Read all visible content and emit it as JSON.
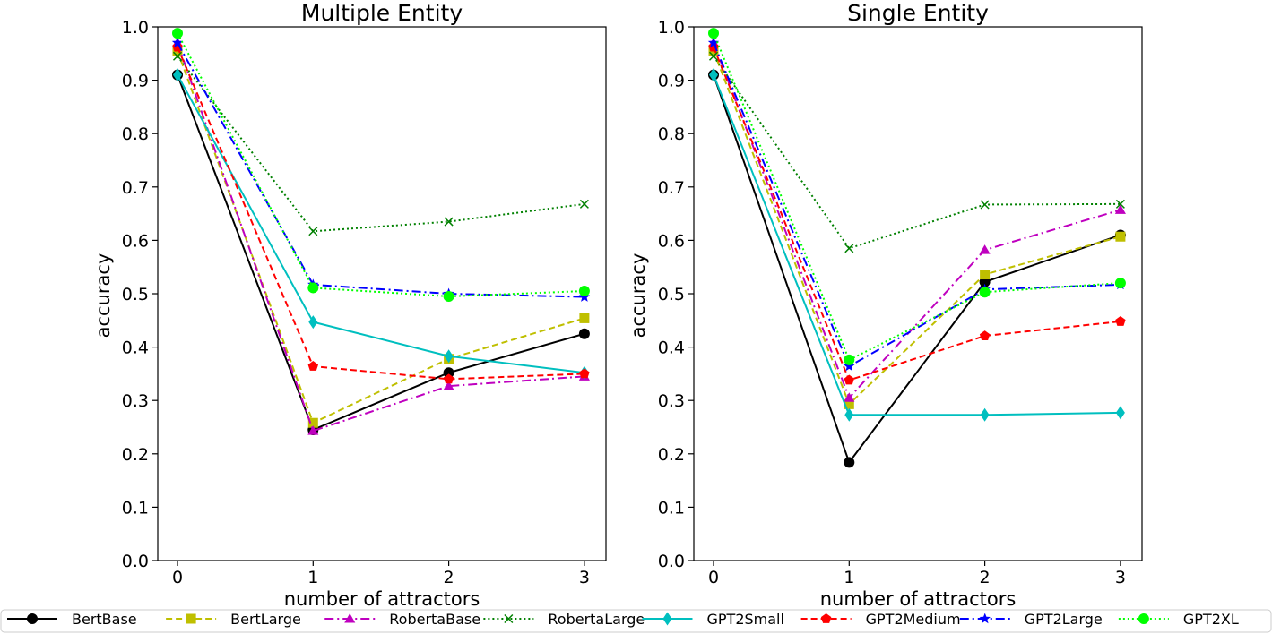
{
  "chart_data": [
    {
      "type": "line",
      "title": "Multiple Entity",
      "xlabel": "number of attractors",
      "ylabel": "accuracy",
      "x": [
        0,
        1,
        2,
        3
      ],
      "xticks": [
        "0",
        "1",
        "2",
        "3"
      ],
      "ylim": [
        0.0,
        1.0
      ],
      "yticks": [
        "0.0",
        "0.1",
        "0.2",
        "0.3",
        "0.4",
        "0.5",
        "0.6",
        "0.7",
        "0.8",
        "0.9",
        "1.0"
      ],
      "series": [
        {
          "name": "BertBase",
          "values": [
            0.91,
            0.245,
            0.352,
            0.425
          ]
        },
        {
          "name": "BertLarge",
          "values": [
            0.955,
            0.258,
            0.378,
            0.454
          ]
        },
        {
          "name": "RobertaBase",
          "values": [
            0.97,
            0.243,
            0.327,
            0.345
          ]
        },
        {
          "name": "RobertaLarge",
          "values": [
            0.945,
            0.617,
            0.635,
            0.668
          ]
        },
        {
          "name": "GPT2Small",
          "values": [
            0.91,
            0.447,
            0.383,
            0.352
          ]
        },
        {
          "name": "GPT2Medium",
          "values": [
            0.962,
            0.364,
            0.34,
            0.35
          ]
        },
        {
          "name": "GPT2Large",
          "values": [
            0.97,
            0.517,
            0.5,
            0.494
          ]
        },
        {
          "name": "GPT2XL",
          "values": [
            0.988,
            0.511,
            0.495,
            0.505
          ]
        }
      ]
    },
    {
      "type": "line",
      "title": "Single Entity",
      "xlabel": "number of attractors",
      "ylabel": "accuracy",
      "x": [
        0,
        1,
        2,
        3
      ],
      "xticks": [
        "0",
        "1",
        "2",
        "3"
      ],
      "ylim": [
        0.0,
        1.0
      ],
      "yticks": [
        "0.0",
        "0.1",
        "0.2",
        "0.3",
        "0.4",
        "0.5",
        "0.6",
        "0.7",
        "0.8",
        "0.9",
        "1.0"
      ],
      "series": [
        {
          "name": "BertBase",
          "values": [
            0.91,
            0.184,
            0.522,
            0.61
          ]
        },
        {
          "name": "BertLarge",
          "values": [
            0.955,
            0.293,
            0.536,
            0.607
          ]
        },
        {
          "name": "RobertaBase",
          "values": [
            0.97,
            0.305,
            0.582,
            0.657
          ]
        },
        {
          "name": "RobertaLarge",
          "values": [
            0.945,
            0.585,
            0.667,
            0.668
          ]
        },
        {
          "name": "GPT2Small",
          "values": [
            0.91,
            0.273,
            0.273,
            0.277
          ]
        },
        {
          "name": "GPT2Medium",
          "values": [
            0.962,
            0.338,
            0.421,
            0.448
          ]
        },
        {
          "name": "GPT2Large",
          "values": [
            0.97,
            0.364,
            0.508,
            0.517
          ]
        },
        {
          "name": "GPT2XL",
          "values": [
            0.988,
            0.376,
            0.503,
            0.52
          ]
        }
      ]
    }
  ],
  "legend": {
    "placement": "bottom",
    "entries": [
      {
        "name": "BertBase",
        "color": "#000000",
        "marker": "circle",
        "dash": "solid"
      },
      {
        "name": "BertLarge",
        "color": "#bfbf00",
        "marker": "square",
        "dash": "dashed"
      },
      {
        "name": "RobertaBase",
        "color": "#bf00bf",
        "marker": "triangle",
        "dash": "dashdot"
      },
      {
        "name": "RobertaLarge",
        "color": "#008000",
        "marker": "x",
        "dash": "dotted"
      },
      {
        "name": "GPT2Small",
        "color": "#00bfbf",
        "marker": "diamond",
        "dash": "solid"
      },
      {
        "name": "GPT2Medium",
        "color": "#ff0000",
        "marker": "pentagon",
        "dash": "dashed"
      },
      {
        "name": "GPT2Large",
        "color": "#0000ff",
        "marker": "star",
        "dash": "dashdot"
      },
      {
        "name": "GPT2XL",
        "color": "#00ff00",
        "marker": "circle",
        "dash": "dotted"
      }
    ]
  }
}
